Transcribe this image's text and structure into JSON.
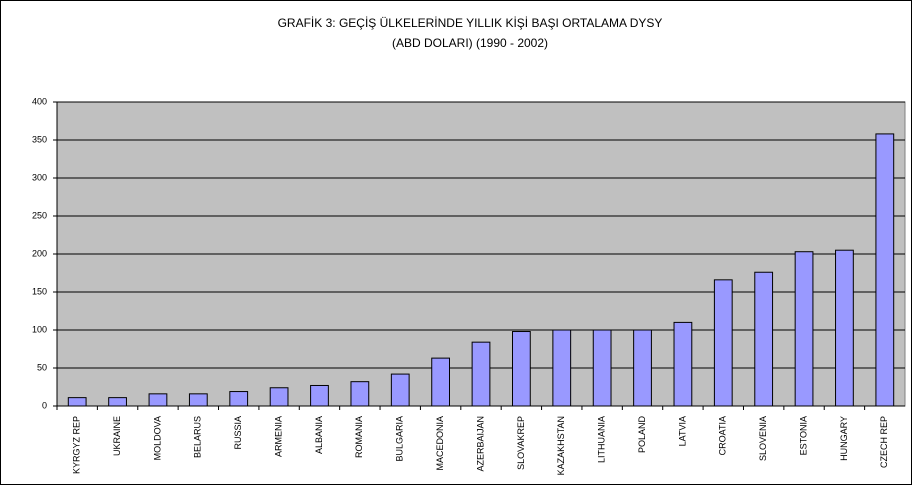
{
  "chart_data": {
    "type": "bar",
    "title": [
      "GRAFİK 3: GEÇİŞ ÜLKELERİNDE YILLIK KİŞİ BAŞI ORTALAMA DYSY",
      "(ABD DOLARI) (1990 - 2002)"
    ],
    "categories": [
      "KYRGYZ REP",
      "UKRAINE",
      "MOLDOVA",
      "BELARUS",
      "RUSSIA",
      "ARMENIA",
      "ALBANIA",
      "ROMANIA",
      "BULGARIA",
      "MACEDONIA",
      "AZERBAIJAN",
      "SLOVAKREP",
      "KAZAKHSTAN",
      "LITHUANIA",
      "POLAND",
      "LATVIA",
      "CROATIA",
      "SLOVENIA",
      "ESTONIA",
      "HUNGARY",
      "CZECH REP"
    ],
    "values": [
      11,
      11,
      16,
      16,
      19,
      24,
      27,
      32,
      42,
      63,
      84,
      98,
      100,
      100,
      100,
      110,
      166,
      176,
      203,
      205,
      358
    ],
    "color": "#9999ff",
    "ylim": [
      0,
      400
    ],
    "yticks": [
      0,
      50,
      100,
      150,
      200,
      250,
      300,
      350,
      400
    ],
    "grid": true
  }
}
